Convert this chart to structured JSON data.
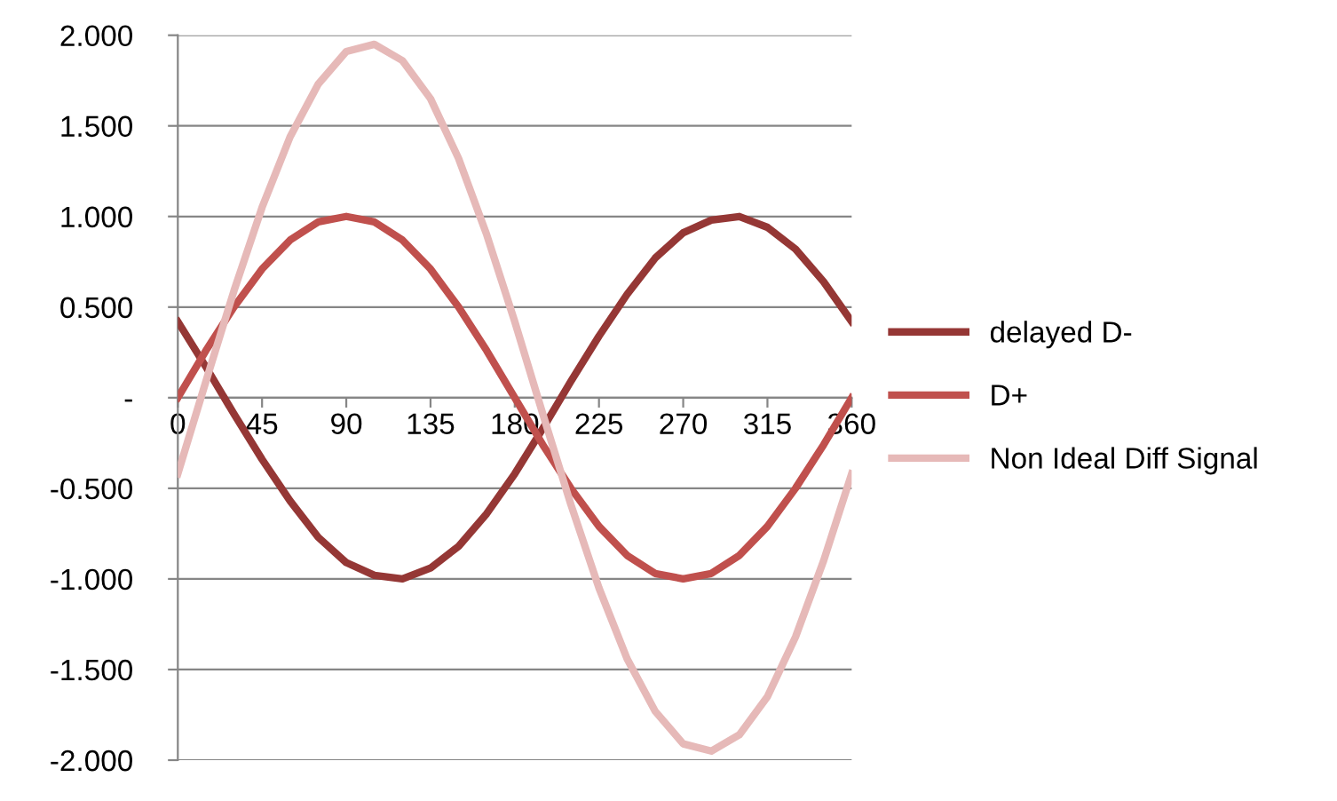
{
  "chart_data": {
    "type": "line",
    "x": [
      0,
      15,
      30,
      45,
      60,
      75,
      90,
      105,
      120,
      135,
      150,
      165,
      180,
      195,
      210,
      225,
      240,
      255,
      270,
      285,
      300,
      315,
      330,
      345,
      360
    ],
    "series": [
      {
        "name": "delayed D-",
        "color": "#953735",
        "values": [
          0.42,
          0.17,
          -0.09,
          -0.34,
          -0.57,
          -0.77,
          -0.91,
          -0.98,
          -1.0,
          -0.94,
          -0.82,
          -0.64,
          -0.42,
          -0.17,
          0.09,
          0.34,
          0.57,
          0.77,
          0.91,
          0.98,
          1.0,
          0.94,
          0.82,
          0.64,
          0.42
        ]
      },
      {
        "name": "D+",
        "color": "#c0504d",
        "values": [
          0,
          0.26,
          0.5,
          0.71,
          0.87,
          0.97,
          1,
          0.97,
          0.87,
          0.71,
          0.5,
          0.26,
          0,
          -0.26,
          -0.5,
          -0.71,
          -0.87,
          -0.97,
          -1,
          -0.97,
          -0.87,
          -0.71,
          -0.5,
          -0.26,
          0
        ]
      },
      {
        "name": "Non Ideal Diff Signal",
        "color": "#e6b9b8",
        "values": [
          -0.42,
          0.09,
          0.59,
          1.05,
          1.44,
          1.73,
          1.91,
          1.95,
          1.86,
          1.65,
          1.32,
          0.9,
          0.42,
          -0.09,
          -0.59,
          -1.05,
          -1.44,
          -1.73,
          -1.91,
          -1.95,
          -1.86,
          -1.65,
          -1.32,
          -0.9,
          -0.42
        ]
      }
    ],
    "xlim": [
      0,
      360
    ],
    "xticks": [
      0,
      45,
      90,
      135,
      180,
      225,
      270,
      315,
      360
    ],
    "ylim": [
      -2,
      2
    ],
    "yticks": [
      {
        "value": -2,
        "label": "-2.000"
      },
      {
        "value": -1.5,
        "label": "-1.500"
      },
      {
        "value": -1,
        "label": "-1.000"
      },
      {
        "value": -0.5,
        "label": "-0.500"
      },
      {
        "value": 0,
        "label": "-"
      },
      {
        "value": 0.5,
        "label": "0.500"
      },
      {
        "value": 1,
        "label": "1.000"
      },
      {
        "value": 1.5,
        "label": "1.500"
      },
      {
        "value": 2,
        "label": "2.000"
      }
    ],
    "grid": "y",
    "legend": "right",
    "marker": "none",
    "line_style": "solid"
  }
}
